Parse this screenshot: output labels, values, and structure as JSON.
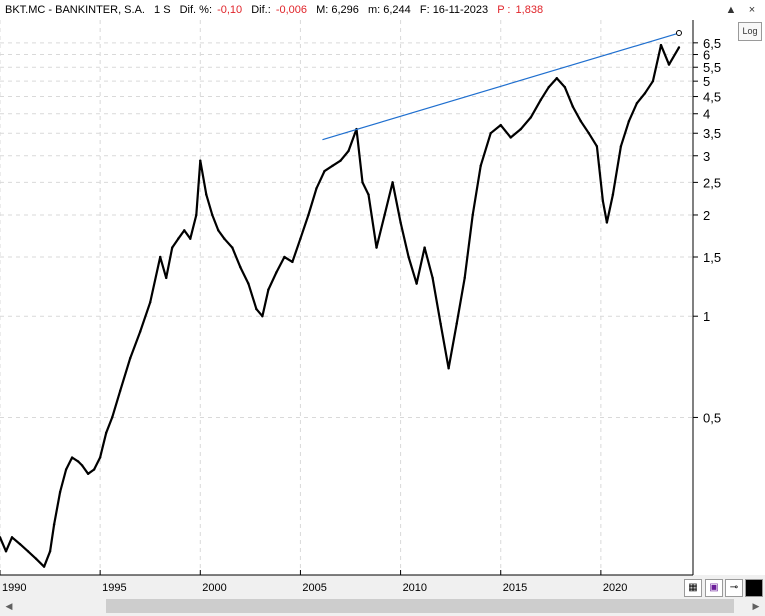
{
  "header": {
    "ticker": "BKT.MC - BANKINTER, S.A.",
    "interval": "1 S",
    "dif_pct_label": "Dif. %:",
    "dif_pct_value": "-0,10",
    "dif_label": "Dif.:",
    "dif_value": "-0,006",
    "max_label": "M: 6,296",
    "min_label": "m: 6,244",
    "date_label": "F: 16-11-2023",
    "p_label": "P :",
    "p_value": "1,838"
  },
  "controls": {
    "log_label": "Log",
    "window_close": "×",
    "window_up": "▲"
  },
  "colors": {
    "price": "#000000",
    "trendline": "#1f6fcf",
    "accent_red": "#e0242a",
    "grid": "#d9d9d9"
  },
  "chart_data": {
    "type": "line",
    "title": "",
    "xlabel": "",
    "ylabel": "",
    "yscale": "log",
    "grid": true,
    "x_ticks": [
      "1990",
      "1995",
      "2000",
      "2005",
      "2010",
      "2015",
      "2020"
    ],
    "y_ticks": [
      "6,5",
      "6",
      "5,5",
      "5",
      "4,5",
      "4",
      "3,5",
      "3",
      "2,5",
      "2",
      "1,5",
      "1",
      "0,5"
    ],
    "y_tick_values": [
      6.5,
      6,
      5.5,
      5,
      4.5,
      4,
      3.5,
      3,
      2.5,
      2,
      1.5,
      1,
      0.5
    ],
    "xlim": [
      1990.0,
      2024.6
    ],
    "ylim": [
      0.17,
      7.6
    ],
    "series": [
      {
        "x": [
          1990.0,
          1990.3,
          1990.6,
          1991.0,
          1991.4,
          1991.8,
          1992.2,
          1992.5,
          1992.7,
          1993.0,
          1993.3,
          1993.6,
          1993.9,
          1994.1,
          1994.4,
          1994.7,
          1995.0,
          1995.3,
          1995.6,
          1996.0,
          1996.5,
          1997.0,
          1997.5,
          1998.0,
          1998.3,
          1998.6,
          1998.9,
          1999.2,
          1999.5,
          1999.8,
          2000.0,
          2000.3,
          2000.6,
          2000.9,
          2001.2,
          2001.6,
          2002.0,
          2002.4,
          2002.8,
          2003.1,
          2003.4,
          2003.8,
          2004.2,
          2004.6,
          2005.0,
          2005.4,
          2005.8,
          2006.2,
          2006.6,
          2007.0,
          2007.4,
          2007.8,
          2008.1,
          2008.4,
          2008.8,
          2009.2,
          2009.6,
          2010.0,
          2010.4,
          2010.8,
          2011.2,
          2011.6,
          2012.0,
          2012.4,
          2012.8,
          2013.2,
          2013.6,
          2014.0,
          2014.5,
          2015.0,
          2015.5,
          2016.0,
          2016.5,
          2017.0,
          2017.4,
          2017.8,
          2018.2,
          2018.6,
          2019.0,
          2019.4,
          2019.8,
          2020.1,
          2020.3,
          2020.6,
          2021.0,
          2021.4,
          2021.8,
          2022.2,
          2022.6,
          2023.0,
          2023.4,
          2023.9
        ],
        "y": [
          0.22,
          0.2,
          0.22,
          0.21,
          0.2,
          0.19,
          0.18,
          0.2,
          0.24,
          0.3,
          0.35,
          0.38,
          0.37,
          0.36,
          0.34,
          0.35,
          0.38,
          0.45,
          0.5,
          0.6,
          0.75,
          0.9,
          1.1,
          1.5,
          1.3,
          1.6,
          1.7,
          1.8,
          1.7,
          2.0,
          2.9,
          2.3,
          2.0,
          1.8,
          1.7,
          1.6,
          1.4,
          1.25,
          1.05,
          1.0,
          1.2,
          1.35,
          1.5,
          1.45,
          1.7,
          2.0,
          2.4,
          2.7,
          2.8,
          2.9,
          3.1,
          3.6,
          2.5,
          2.3,
          1.6,
          2.0,
          2.5,
          1.9,
          1.5,
          1.25,
          1.6,
          1.3,
          0.95,
          0.7,
          0.95,
          1.3,
          2.0,
          2.8,
          3.5,
          3.7,
          3.4,
          3.6,
          3.9,
          4.4,
          4.8,
          5.1,
          4.8,
          4.2,
          3.8,
          3.5,
          3.2,
          2.2,
          1.9,
          2.3,
          3.2,
          3.8,
          4.3,
          4.6,
          5.0,
          6.4,
          5.6,
          6.3
        ]
      }
    ],
    "trendline": {
      "x": [
        2006.1,
        2023.9
      ],
      "y": [
        3.35,
        6.95
      ]
    }
  }
}
